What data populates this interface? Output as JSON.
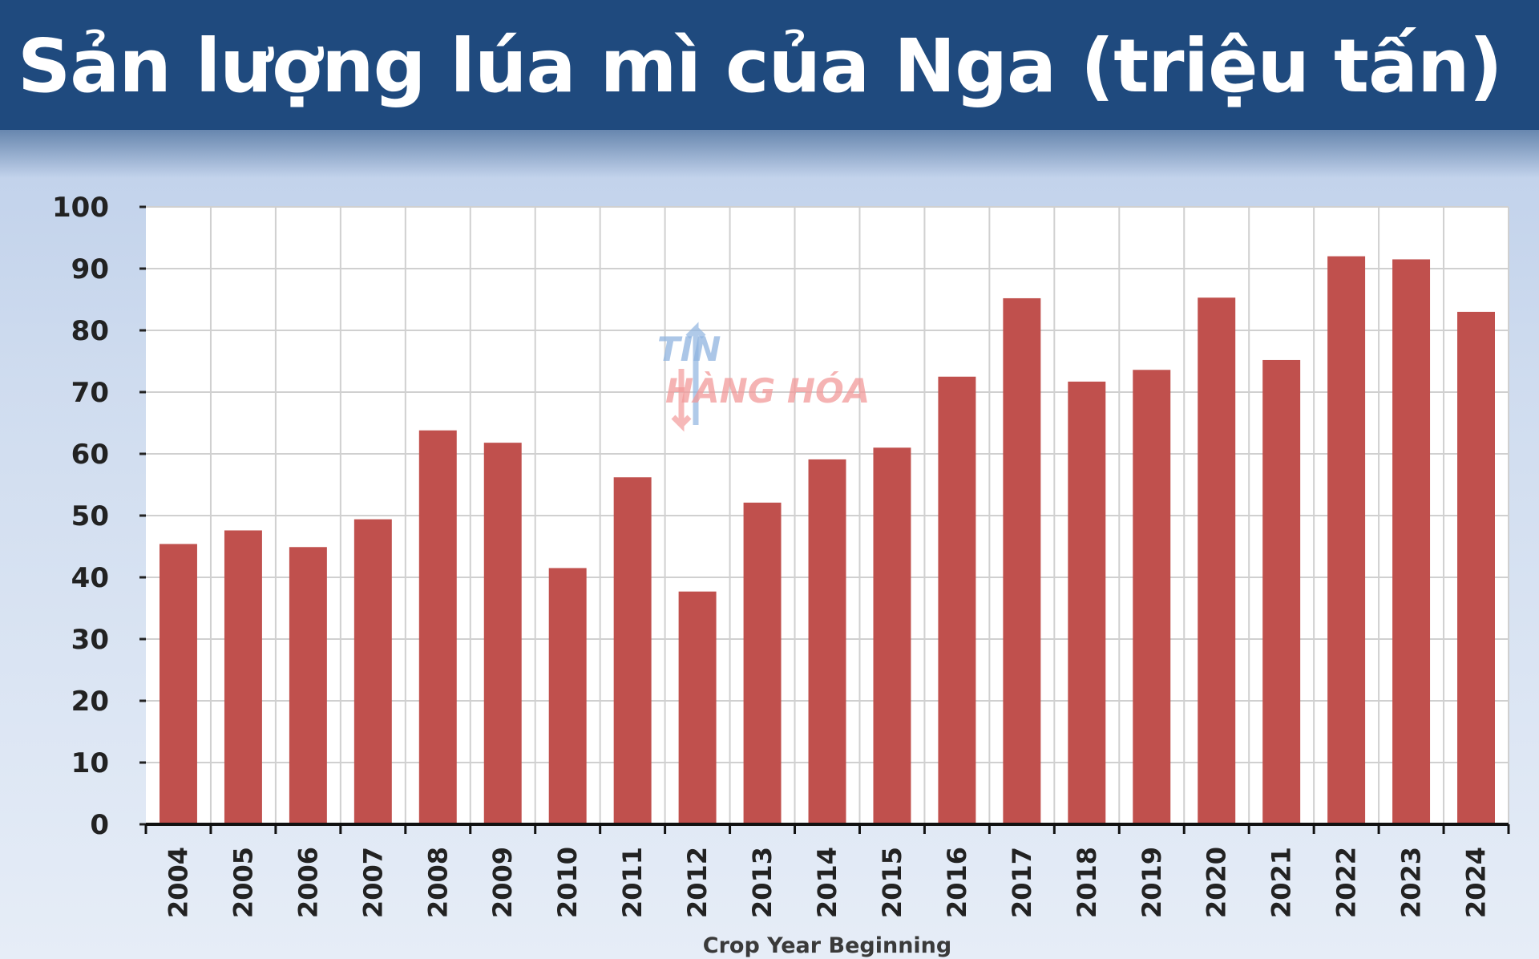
{
  "header": {
    "title": "Sản lượng lúa mì của Nga (triệu tấn)"
  },
  "watermark": {
    "line1": "TIN",
    "line2": "HÀNG HÓA"
  },
  "colors": {
    "header_bg": "#1f4a7e",
    "bar": "#c0504d",
    "grid": "#d0d0d0",
    "watermark_blue": "#8fb4e0",
    "watermark_red": "#f29a9a"
  },
  "chart_data": {
    "type": "bar",
    "title": "Sản lượng lúa mì của Nga (triệu tấn)",
    "xlabel": "Crop Year Beginning",
    "ylabel": "",
    "ylim": [
      0,
      100
    ],
    "yticks": [
      0,
      10,
      20,
      30,
      40,
      50,
      60,
      70,
      80,
      90,
      100
    ],
    "grid": true,
    "categories": [
      "2004",
      "2005",
      "2006",
      "2007",
      "2008",
      "2009",
      "2010",
      "2011",
      "2012",
      "2013",
      "2014",
      "2015",
      "2016",
      "2017",
      "2018",
      "2019",
      "2020",
      "2021",
      "2022",
      "2023",
      "2024"
    ],
    "values": [
      45.4,
      47.6,
      44.9,
      49.4,
      63.8,
      61.8,
      41.5,
      56.2,
      37.7,
      52.1,
      59.1,
      61.0,
      72.5,
      85.2,
      71.7,
      73.6,
      85.3,
      75.2,
      92.0,
      91.5,
      83.0
    ]
  }
}
